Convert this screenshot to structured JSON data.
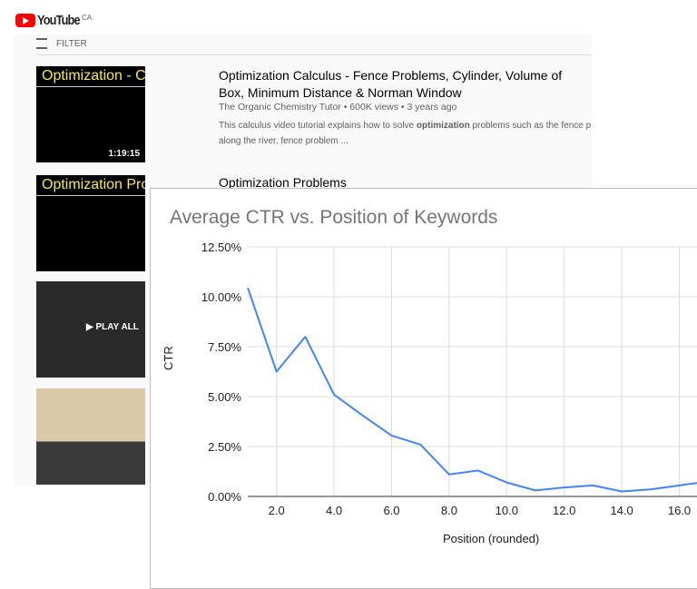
{
  "youtube": {
    "logo_text": "YouTube",
    "region": "CA",
    "filter_label": "FILTER",
    "results": [
      {
        "thumb_text": "Optimization - Calculus",
        "duration": "1:19:15",
        "title": "Optimization Calculus - Fence Problems, Cylinder, Volume of Box, Minimum Distance & Norman Window",
        "meta": "The Organic Chemistry Tutor • 600K views • 3 years ago",
        "desc_pre": "This calculus video tutorial explains how to solve ",
        "desc_bold": "optimization",
        "desc_post": " problems such as the fence pr",
        "desc_line2": "along the river, fence problem ..."
      },
      {
        "thumb_text": "Optimization Problems",
        "title": "Optimization Problems"
      },
      {
        "overlay": "▶ PLAY ALL"
      },
      {}
    ]
  },
  "chart_data": {
    "type": "line",
    "title": "Average CTR vs. Position of Keywords",
    "xlabel": "Position (rounded)",
    "ylabel": "CTR",
    "xlim": [
      1,
      17
    ],
    "ylim": [
      0,
      12.5
    ],
    "x_ticks": [
      "2.0",
      "4.0",
      "6.0",
      "8.0",
      "10.0",
      "12.0",
      "14.0",
      "16.0"
    ],
    "y_ticks": [
      "0.00%",
      "2.50%",
      "5.00%",
      "7.50%",
      "10.00%",
      "12.50%"
    ],
    "grid": true,
    "line_color": "#4285f4",
    "x": [
      1,
      2,
      3,
      4,
      5,
      6,
      7,
      8,
      9,
      10,
      11,
      12,
      13,
      14,
      15,
      16,
      17
    ],
    "y": [
      10.45,
      6.25,
      8.0,
      5.1,
      4.05,
      3.05,
      2.6,
      1.1,
      1.3,
      0.7,
      0.3,
      0.45,
      0.55,
      0.25,
      0.35,
      0.55,
      0.75
    ]
  }
}
